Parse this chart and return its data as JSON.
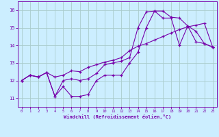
{
  "xlabel": "Windchill (Refroidissement éolien,°C)",
  "background_color": "#cceeff",
  "grid_color": "#aacccc",
  "line_color": "#7700aa",
  "x_ticks": [
    0,
    1,
    2,
    3,
    4,
    5,
    6,
    7,
    8,
    9,
    10,
    11,
    12,
    13,
    14,
    15,
    16,
    17,
    18,
    19,
    20,
    21,
    22,
    23
  ],
  "y_ticks": [
    11,
    12,
    13,
    14,
    15,
    16
  ],
  "ylim": [
    10.5,
    16.5
  ],
  "xlim": [
    -0.5,
    23.5
  ],
  "series1_y": [
    12.0,
    12.3,
    12.2,
    12.45,
    11.1,
    11.65,
    11.1,
    11.1,
    11.2,
    12.0,
    12.3,
    12.3,
    12.3,
    13.0,
    13.6,
    15.0,
    15.95,
    15.95,
    15.6,
    15.55,
    15.1,
    14.8,
    14.1,
    13.9
  ],
  "series2_y": [
    12.0,
    12.3,
    12.2,
    12.45,
    12.2,
    12.3,
    12.55,
    12.5,
    12.75,
    12.9,
    13.05,
    13.15,
    13.3,
    13.7,
    13.95,
    14.1,
    14.3,
    14.5,
    14.7,
    14.9,
    15.05,
    15.15,
    15.25,
    13.9
  ],
  "series3_y": [
    12.0,
    12.3,
    12.2,
    12.45,
    11.1,
    12.0,
    12.1,
    12.0,
    12.1,
    12.4,
    12.9,
    13.0,
    13.1,
    13.3,
    15.0,
    15.9,
    15.95,
    15.55,
    15.55,
    14.0,
    15.1,
    14.2,
    14.1,
    13.9
  ]
}
